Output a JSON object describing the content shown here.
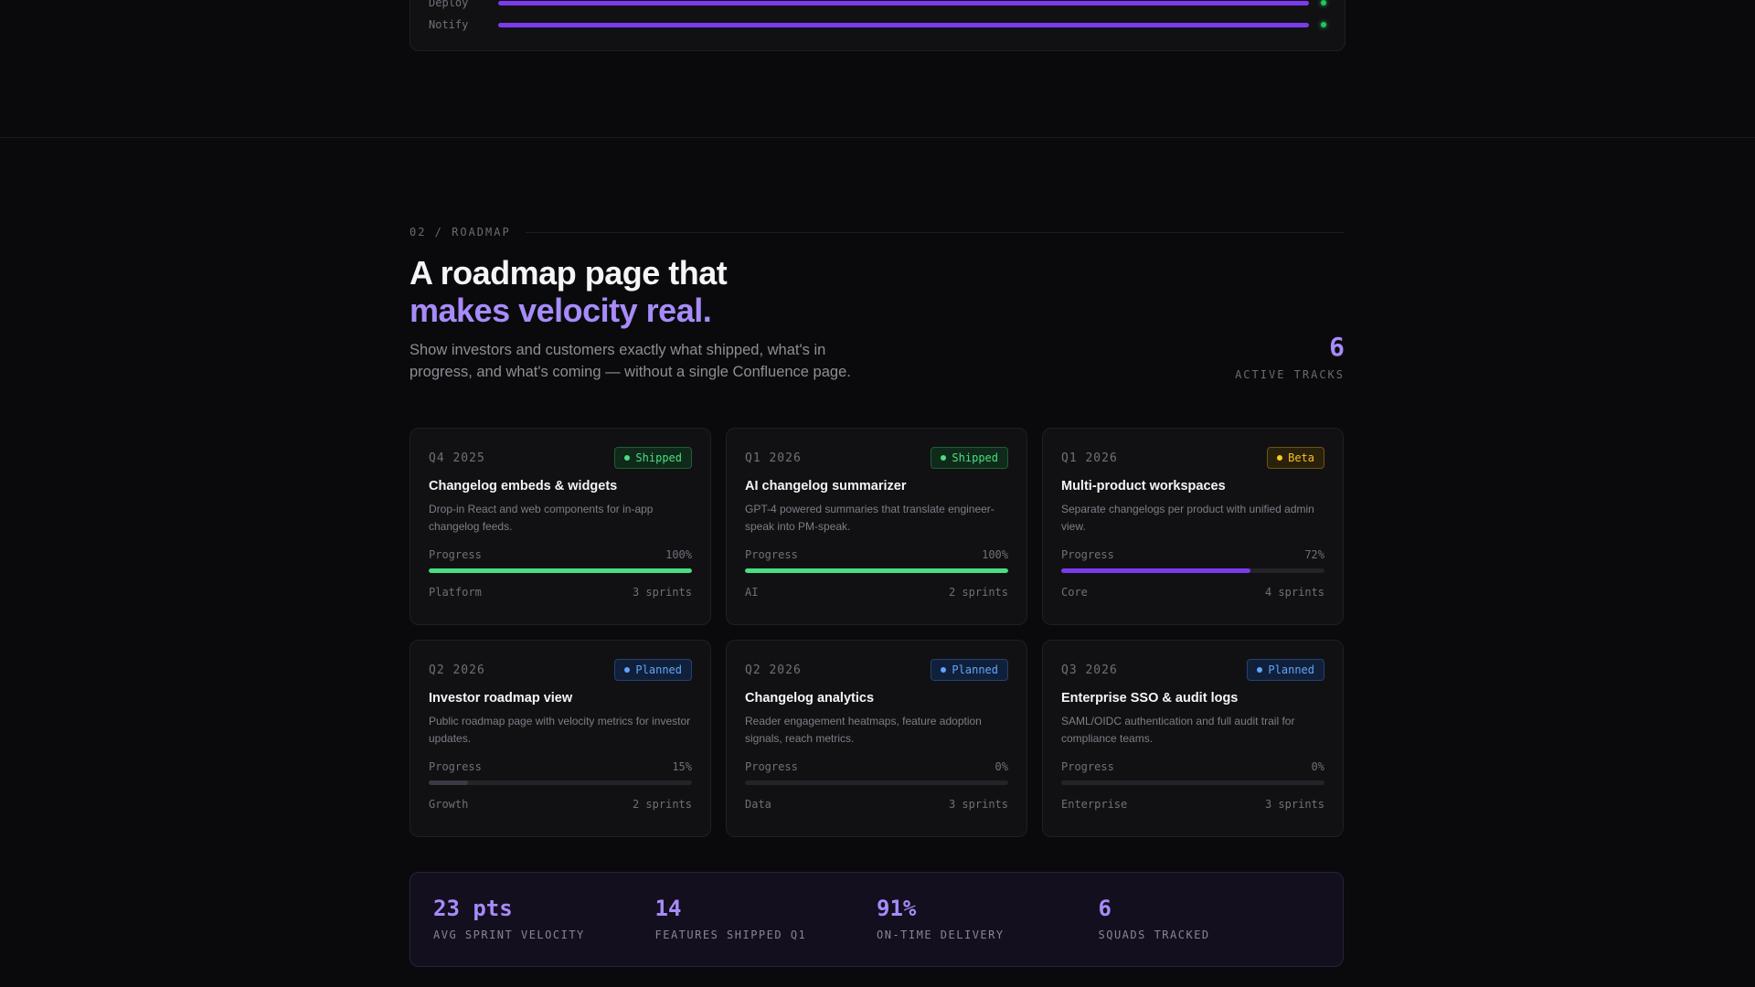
{
  "pipeline": {
    "rows": [
      {
        "label": "Deploy",
        "progress": 1.0
      },
      {
        "label": "Notify",
        "progress": 1.0
      }
    ]
  },
  "roadmap": {
    "eyebrow": "02 / ROADMAP",
    "title_line1": "A roadmap page that",
    "title_line2": "makes velocity real.",
    "subtitle": "Show investors and customers exactly what shipped, what's in progress, and what's coming — without a single Confluence page.",
    "tracks_count": "6",
    "tracks_label": "ACTIVE TRACKS"
  },
  "cards": [
    {
      "quarter": "Q4 2025",
      "status": "Shipped",
      "status_type": "shipped",
      "title": "Changelog embeds & widgets",
      "desc": "Drop-in React and web components for in-app changelog feeds.",
      "progress_label": "Progress",
      "progress_text": "100%",
      "progress": 100,
      "fill": "green",
      "team": "Platform",
      "sprints": "3 sprints"
    },
    {
      "quarter": "Q1 2026",
      "status": "Shipped",
      "status_type": "shipped",
      "title": "AI changelog summarizer",
      "desc": "GPT-4 powered summaries that translate engineer-speak into PM-speak.",
      "progress_label": "Progress",
      "progress_text": "100%",
      "progress": 100,
      "fill": "green",
      "team": "AI",
      "sprints": "2 sprints"
    },
    {
      "quarter": "Q1 2026",
      "status": "Beta",
      "status_type": "beta",
      "title": "Multi-product workspaces",
      "desc": "Separate changelogs per product with unified admin view.",
      "progress_label": "Progress",
      "progress_text": "72%",
      "progress": 72,
      "fill": "purple",
      "team": "Core",
      "sprints": "4 sprints"
    },
    {
      "quarter": "Q2 2026",
      "status": "Planned",
      "status_type": "planned",
      "title": "Investor roadmap view",
      "desc": "Public roadmap page with velocity metrics for investor updates.",
      "progress_label": "Progress",
      "progress_text": "15%",
      "progress": 15,
      "fill": "gray",
      "team": "Growth",
      "sprints": "2 sprints"
    },
    {
      "quarter": "Q2 2026",
      "status": "Planned",
      "status_type": "planned",
      "title": "Changelog analytics",
      "desc": "Reader engagement heatmaps, feature adoption signals, reach metrics.",
      "progress_label": "Progress",
      "progress_text": "0%",
      "progress": 0,
      "fill": "gray",
      "team": "Data",
      "sprints": "3 sprints"
    },
    {
      "quarter": "Q3 2026",
      "status": "Planned",
      "status_type": "planned",
      "title": "Enterprise SSO & audit logs",
      "desc": "SAML/OIDC authentication and full audit trail for compliance teams.",
      "progress_label": "Progress",
      "progress_text": "0%",
      "progress": 0,
      "fill": "gray",
      "team": "Enterprise",
      "sprints": "3 sprints"
    }
  ],
  "stats": [
    {
      "value": "23 pts",
      "label": "AVG SPRINT VELOCITY"
    },
    {
      "value": "14",
      "label": "FEATURES SHIPPED Q1"
    },
    {
      "value": "91%",
      "label": "ON-TIME DELIVERY"
    },
    {
      "value": "6",
      "label": "SQUADS TRACKED"
    }
  ]
}
